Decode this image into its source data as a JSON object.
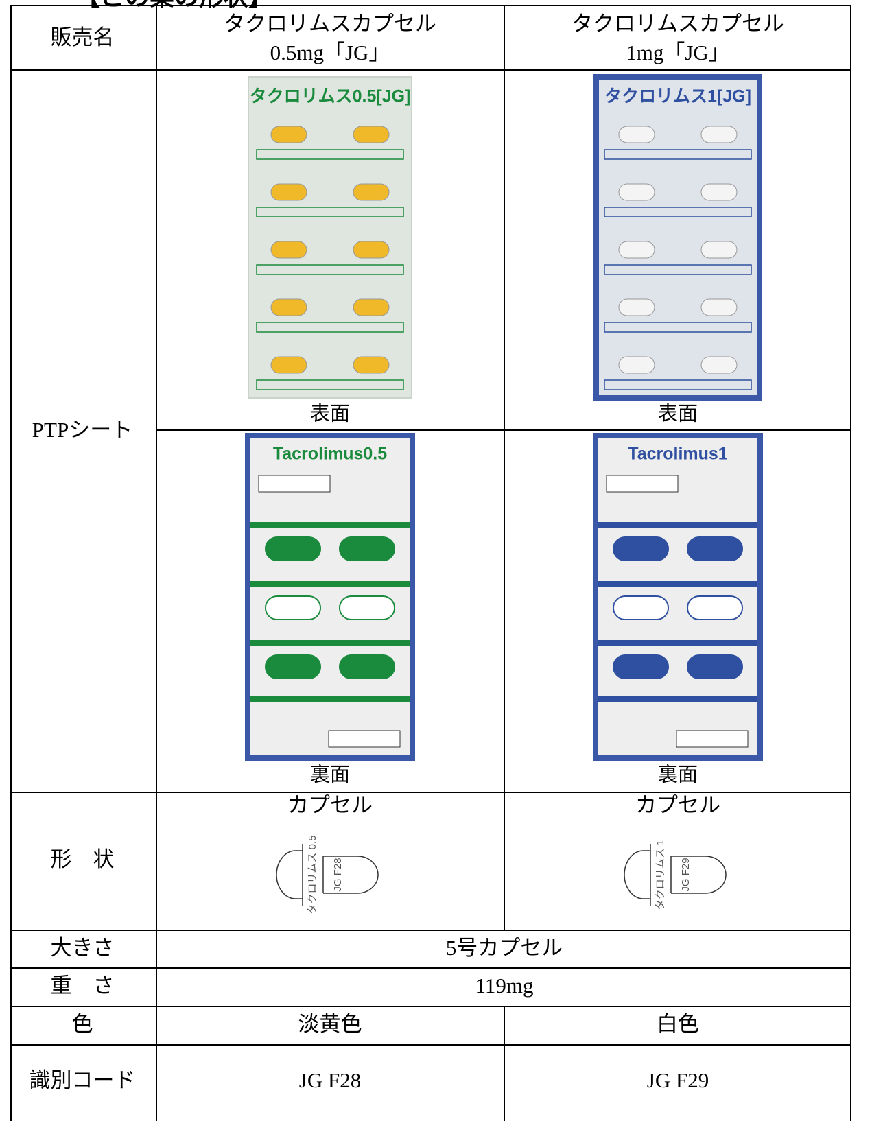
{
  "header": {
    "title": "【この薬の形状】"
  },
  "row_labels": {
    "name": "販売名",
    "ptp": "PTPシート",
    "shape": "形　状",
    "size": "大きさ",
    "weight": "重　さ",
    "color": "色",
    "code": "識別コード"
  },
  "products": [
    {
      "name_line1": "タクロリムスカプセル",
      "name_line2": "0.5mg「JG」",
      "front_title": "タクロリムス0.5[JG]",
      "front_label": "表面",
      "back_title": "Tacrolimus0.5",
      "back_label": "裏面",
      "shape": "カプセル",
      "imprint_1": "タクロリムス 0.5",
      "imprint_2": "JG F28",
      "color": "淡黄色",
      "code": "JG F28"
    },
    {
      "name_line1": "タクロリムスカプセル",
      "name_line2": "1mg「JG」",
      "front_title": "タクロリムス1[JG]",
      "front_label": "表面",
      "back_title": "Tacrolimus1",
      "back_label": "裏面",
      "shape": "カプセル",
      "imprint_1": "タクロリムス 1",
      "imprint_2": "JG F29",
      "color": "白色",
      "code": "JG F29"
    }
  ],
  "size": "5号カプセル",
  "weight": "119mg"
}
